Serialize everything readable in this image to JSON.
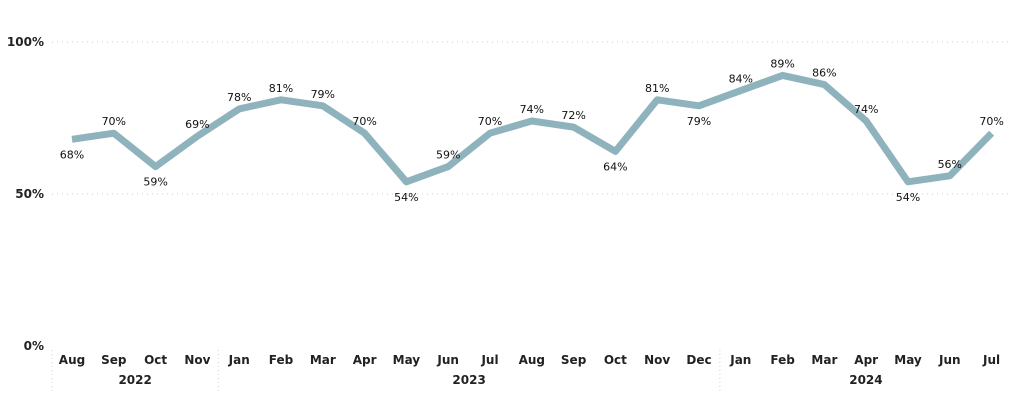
{
  "chart_data": {
    "type": "line",
    "x": [
      "Aug",
      "Sep",
      "Oct",
      "Nov",
      "Jan",
      "Feb",
      "Mar",
      "Apr",
      "May",
      "Jun",
      "Jul",
      "Aug",
      "Sep",
      "Oct",
      "Nov",
      "Dec",
      "Jan",
      "Feb",
      "Mar",
      "Apr",
      "May",
      "Jun",
      "Jul"
    ],
    "years": [
      {
        "label": "2022",
        "count": 4
      },
      {
        "label": "2023",
        "count": 12
      },
      {
        "label": "2024",
        "count": 7
      }
    ],
    "series": [
      {
        "values": [
          68,
          70,
          59,
          69,
          78,
          81,
          79,
          70,
          54,
          59,
          70,
          74,
          72,
          64,
          81,
          79,
          84,
          89,
          86,
          74,
          54,
          56,
          70
        ],
        "value_labels": [
          "68%",
          "70%",
          "59%",
          "69%",
          "78%",
          "81%",
          "79%",
          "70%",
          "54%",
          "59%",
          "70%",
          "74%",
          "72%",
          "64%",
          "81%",
          "79%",
          "84%",
          "89%",
          "86%",
          "74%",
          "54%",
          "56%",
          "70%"
        ],
        "color": "#8fb3bd"
      }
    ],
    "label_position": [
      "below",
      "above",
      "below",
      "above",
      "above",
      "above",
      "above",
      "above",
      "below",
      "above",
      "above",
      "above",
      "above",
      "below",
      "above",
      "below",
      "above",
      "above",
      "above",
      "above",
      "below",
      "above",
      "above"
    ],
    "yticks": [
      {
        "value": 100,
        "label": "100%"
      },
      {
        "value": 50,
        "label": "50%"
      },
      {
        "value": 0,
        "label": "0%"
      }
    ],
    "ylim": [
      0,
      100
    ],
    "grid": true,
    "title": "",
    "xlabel": "",
    "ylabel": ""
  }
}
